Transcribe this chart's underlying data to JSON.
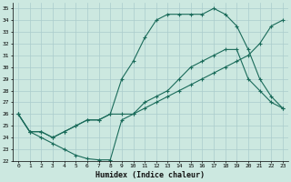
{
  "xlabel": "Humidex (Indice chaleur)",
  "xlim": [
    -0.5,
    23.5
  ],
  "ylim": [
    22,
    35.5
  ],
  "xticks": [
    0,
    1,
    2,
    3,
    4,
    5,
    6,
    7,
    8,
    9,
    10,
    11,
    12,
    13,
    14,
    15,
    16,
    17,
    18,
    19,
    20,
    21,
    22,
    23
  ],
  "yticks": [
    22,
    23,
    24,
    25,
    26,
    27,
    28,
    29,
    30,
    31,
    32,
    33,
    34,
    35
  ],
  "bg_color": "#cce8e0",
  "grid_color": "#aacccc",
  "line_color": "#1a6b5a",
  "line1_x": [
    0,
    1,
    2,
    3,
    4,
    5,
    6,
    7,
    8,
    9,
    10,
    11,
    12,
    13,
    14,
    15,
    16,
    17,
    18,
    19,
    20,
    21,
    22,
    23
  ],
  "line1_y": [
    26.0,
    24.5,
    24.0,
    23.5,
    23.0,
    22.5,
    22.2,
    22.1,
    22.1,
    25.5,
    26.0,
    27.0,
    27.5,
    28.0,
    29.0,
    30.0,
    30.5,
    31.0,
    31.5,
    31.5,
    29.0,
    28.0,
    27.0,
    26.5
  ],
  "line2_x": [
    0,
    1,
    2,
    3,
    4,
    5,
    6,
    7,
    8,
    9,
    10,
    11,
    12,
    13,
    14,
    15,
    16,
    17,
    18,
    19,
    20,
    21,
    22,
    23
  ],
  "line2_y": [
    26.0,
    24.5,
    24.5,
    24.0,
    24.5,
    25.0,
    25.5,
    25.5,
    26.0,
    26.0,
    26.0,
    26.5,
    27.0,
    27.5,
    28.0,
    28.5,
    29.0,
    29.5,
    30.0,
    30.5,
    31.0,
    32.0,
    33.5,
    34.0
  ],
  "line3_x": [
    0,
    1,
    2,
    3,
    4,
    5,
    6,
    7,
    8,
    9,
    10,
    11,
    12,
    13,
    14,
    15,
    16,
    17,
    18,
    19,
    20,
    21,
    22,
    23
  ],
  "line3_y": [
    26.0,
    24.5,
    24.5,
    24.0,
    24.5,
    25.0,
    25.5,
    25.5,
    26.0,
    29.0,
    30.5,
    32.5,
    34.0,
    34.5,
    34.5,
    34.5,
    34.5,
    35.0,
    34.5,
    33.5,
    31.5,
    29.0,
    27.5,
    26.5
  ]
}
